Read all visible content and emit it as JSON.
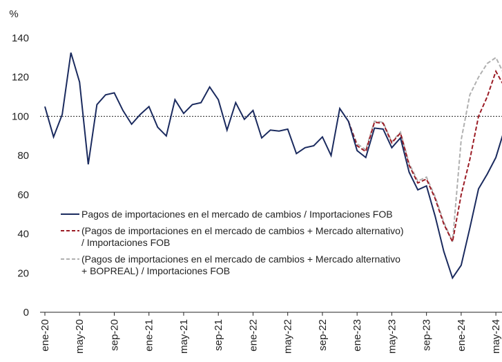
{
  "chart_data": {
    "type": "line",
    "y_label": "%",
    "categories": [
      "ene-20",
      null,
      null,
      null,
      "may-20",
      null,
      null,
      null,
      "sep-20",
      null,
      null,
      null,
      "ene-21",
      null,
      null,
      null,
      "may-21",
      null,
      null,
      null,
      "sep-21",
      null,
      null,
      null,
      "ene-22",
      null,
      null,
      null,
      "may-22",
      null,
      null,
      null,
      "sep-22",
      null,
      null,
      null,
      "ene-23",
      null,
      null,
      null,
      "may-23",
      null,
      null,
      null,
      "sep-23",
      null,
      null,
      null,
      "ene-24",
      null,
      null,
      null,
      "may-24",
      null
    ],
    "series": [
      {
        "name": "Pagos de importaciones en el mercado de cambios / Importaciones FOB",
        "color": "#1a2a5e",
        "dash": false,
        "values": [
          105,
          89.5,
          101,
          132.5,
          117.5,
          75.5,
          106,
          111,
          112,
          103,
          96,
          101,
          105,
          94.5,
          90,
          108.5,
          101.5,
          106,
          107,
          115,
          108.5,
          93,
          107,
          98.5,
          103,
          89,
          93,
          92.5,
          93.5,
          81,
          84,
          85,
          89.5,
          80,
          104,
          97.5,
          82.5,
          79,
          94,
          93.5,
          84,
          89,
          71.5,
          62.5,
          64.5,
          49,
          31,
          17.5,
          24,
          43,
          63,
          70.5,
          79,
          93.5
        ]
      },
      {
        "name": "(Pagos de importaciones en el mercado de cambios + Mercado alternativo) / Importaciones FOB",
        "color": "#9b1b24",
        "dash": true,
        "values": [
          null,
          null,
          null,
          null,
          null,
          null,
          null,
          null,
          null,
          null,
          null,
          null,
          null,
          null,
          null,
          null,
          null,
          null,
          null,
          null,
          null,
          null,
          null,
          null,
          null,
          null,
          null,
          null,
          null,
          null,
          null,
          null,
          null,
          null,
          null,
          97.5,
          85,
          82,
          97,
          96.5,
          86.5,
          91.5,
          75,
          66,
          68,
          58,
          45,
          36,
          60,
          78,
          100,
          110,
          123,
          115
        ]
      },
      {
        "name": "(Pagos de importaciones en el mercado de cambios + Mercado alternativo + BOPREAL) / Importaciones FOB",
        "color": "#b0b0b0",
        "dash": true,
        "values": [
          null,
          null,
          null,
          null,
          null,
          null,
          null,
          null,
          null,
          null,
          null,
          null,
          null,
          null,
          null,
          null,
          null,
          null,
          null,
          null,
          null,
          null,
          null,
          null,
          null,
          null,
          null,
          null,
          null,
          null,
          null,
          null,
          null,
          null,
          null,
          97.5,
          86,
          83,
          97.5,
          97,
          87,
          92,
          76,
          67,
          69,
          59,
          46,
          36,
          88,
          111,
          120,
          127,
          130,
          121
        ]
      }
    ],
    "ylim": [
      0,
      140
    ],
    "yticks": [
      0,
      20,
      40,
      60,
      80,
      100,
      120,
      140
    ],
    "reference_line": 100
  }
}
